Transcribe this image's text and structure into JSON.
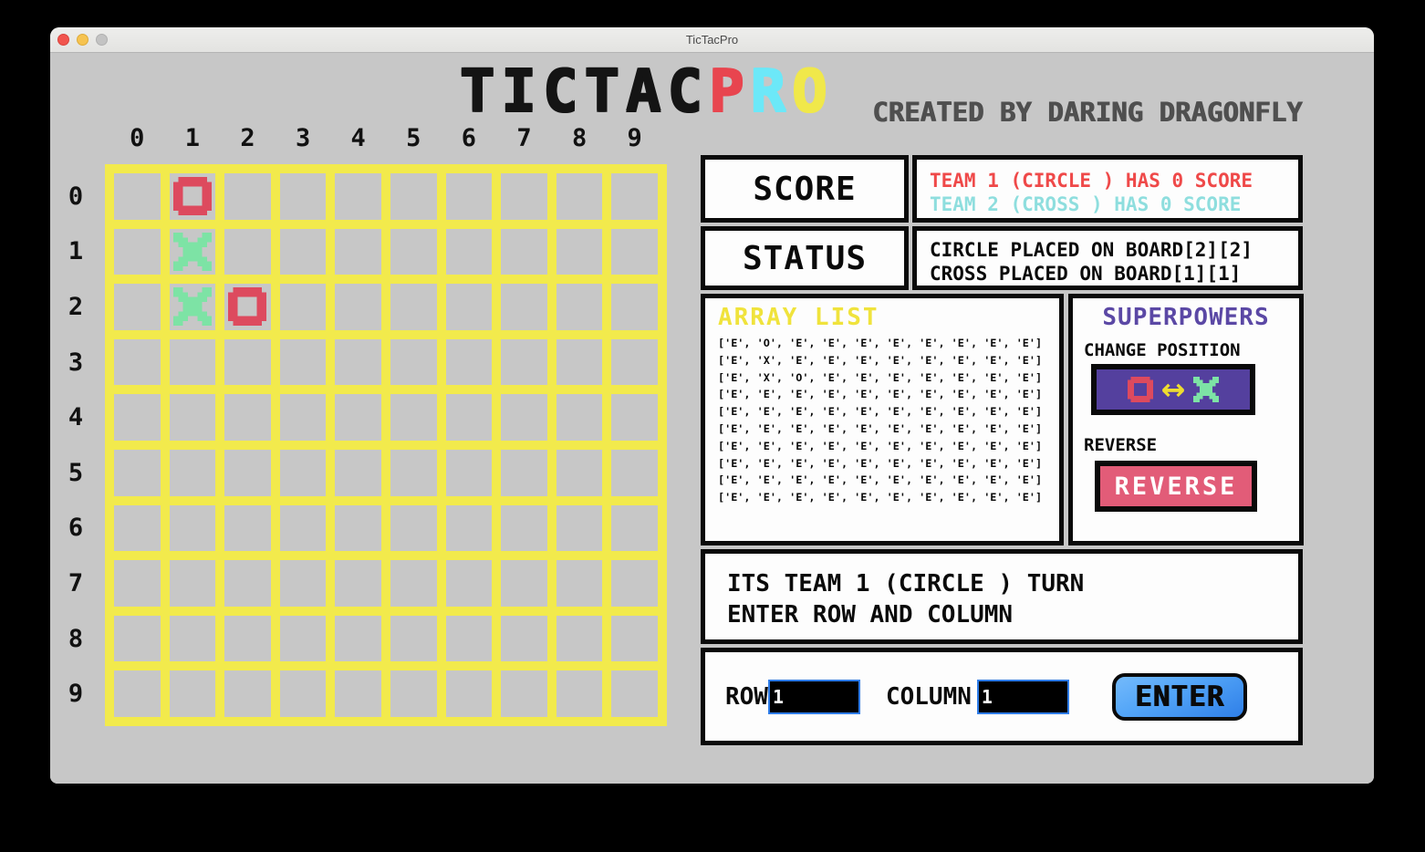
{
  "window": {
    "title": "TicTacPro"
  },
  "header": {
    "title_segments": [
      {
        "text": "TICTAC",
        "color": "#141414"
      },
      {
        "text": "P",
        "color": "#e8454f"
      },
      {
        "text": "R",
        "color": "#6ce8f8"
      },
      {
        "text": "O",
        "color": "#f0e84a"
      }
    ],
    "credit": "CREATED BY DARING DRAGONFLY"
  },
  "board": {
    "col_labels": [
      "0",
      "1",
      "2",
      "3",
      "4",
      "5",
      "6",
      "7",
      "8",
      "9"
    ],
    "row_labels": [
      "0",
      "1",
      "2",
      "3",
      "4",
      "5",
      "6",
      "7",
      "8",
      "9"
    ],
    "marks": [
      {
        "row": 0,
        "col": 1,
        "type": "O"
      },
      {
        "row": 1,
        "col": 1,
        "type": "X"
      },
      {
        "row": 2,
        "col": 1,
        "type": "X"
      },
      {
        "row": 2,
        "col": 2,
        "type": "O"
      }
    ]
  },
  "score_panel": {
    "label": "SCORE",
    "team1": "TEAM 1 (CIRCLE ) HAS 0 SCORE",
    "team2": "TEAM 2 (CROSS ) HAS 0 SCORE"
  },
  "status_panel": {
    "label": "STATUS",
    "line1": "CIRCLE PLACED ON BOARD[2][2]",
    "line2": "CROSS PLACED ON BOARD[1][1]"
  },
  "array_list": {
    "title": "ARRAY LIST",
    "rows": [
      "['E', 'O', 'E', 'E', 'E', 'E', 'E', 'E', 'E', 'E']",
      "['E', 'X', 'E', 'E', 'E', 'E', 'E', 'E', 'E', 'E']",
      "['E', 'X', 'O', 'E', 'E', 'E', 'E', 'E', 'E', 'E']",
      "['E', 'E', 'E', 'E', 'E', 'E', 'E', 'E', 'E', 'E']",
      "['E', 'E', 'E', 'E', 'E', 'E', 'E', 'E', 'E', 'E']",
      "['E', 'E', 'E', 'E', 'E', 'E', 'E', 'E', 'E', 'E']",
      "['E', 'E', 'E', 'E', 'E', 'E', 'E', 'E', 'E', 'E']",
      "['E', 'E', 'E', 'E', 'E', 'E', 'E', 'E', 'E', 'E']",
      "['E', 'E', 'E', 'E', 'E', 'E', 'E', 'E', 'E', 'E']",
      "['E', 'E', 'E', 'E', 'E', 'E', 'E', 'E', 'E', 'E']"
    ]
  },
  "superpowers": {
    "title": "SUPERPOWERS",
    "change_position_label": "CHANGE POSITION",
    "change_position_icons": [
      "circle-icon",
      "swap-arrow-icon",
      "cross-icon"
    ],
    "swap_arrow_glyph": "↔",
    "reverse_label": "REVERSE",
    "reverse_button": "REVERSE"
  },
  "turn_panel": {
    "line1": "ITS TEAM 1 (CIRCLE ) TURN",
    "line2": "ENTER ROW AND COLUMN"
  },
  "input_panel": {
    "row_label": "ROW",
    "row_value": "1",
    "column_label": "COLUMN",
    "column_value": "1",
    "enter_button": "ENTER"
  },
  "colors": {
    "background": "#c7c7c7",
    "grid_yellow": "#f2ea4c",
    "circle_mark": "#dd4a5e",
    "cross_mark": "#7de3a5",
    "team1_red": "#ef4949",
    "team2_cyan": "#8edede",
    "array_title_yellow": "#f0e33c",
    "superpowers_purple": "#5b48a5",
    "change_button_bg": "#54409e",
    "swap_arrow_yellow": "#eedd30",
    "reverse_button_pink": "#e25c78",
    "enter_button_blue": "#3a8ff2",
    "input_border_blue": "#2e7ce8"
  }
}
